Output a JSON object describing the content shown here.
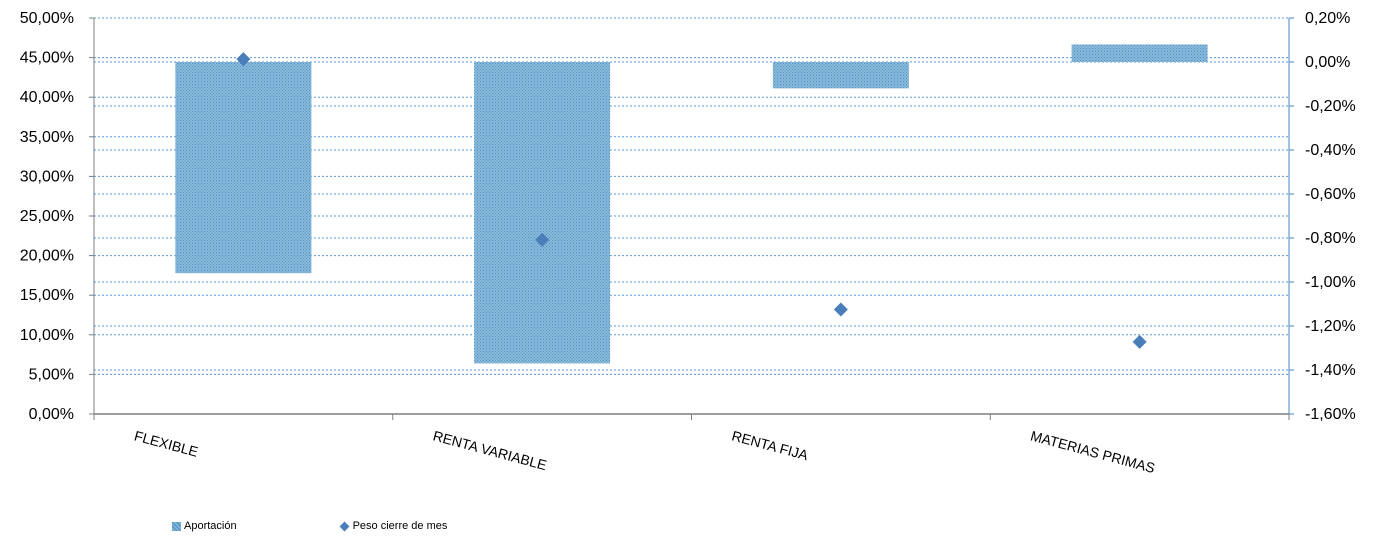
{
  "chart_data": {
    "type": "bar",
    "categories": [
      "FLEXIBLE",
      "RENTA VARIABLE",
      "RENTA FIJA",
      "MATERIAS PRIMAS"
    ],
    "series": [
      {
        "name": "Aportación",
        "chart": "bar",
        "axis": "right",
        "values": [
          -0.96,
          -1.37,
          -0.12,
          0.08
        ]
      },
      {
        "name": "Peso cierre de mes",
        "chart": "scatter",
        "axis": "left",
        "values": [
          44.8,
          22.0,
          13.2,
          9.1
        ]
      }
    ],
    "y_left": {
      "min": 0,
      "max": 50,
      "step": 5,
      "tick_labels": [
        "0,00%",
        "5,00%",
        "10,00%",
        "15,00%",
        "20,00%",
        "25,00%",
        "30,00%",
        "35,00%",
        "40,00%",
        "45,00%",
        "50,00%"
      ]
    },
    "y_right": {
      "min": -1.6,
      "max": 0.2,
      "step": 0.2,
      "tick_labels": [
        "-1,60%",
        "-1,40%",
        "-1,20%",
        "-1,00%",
        "-0,80%",
        "-0,60%",
        "-0,40%",
        "-0,20%",
        "0,00%",
        "0,20%"
      ]
    },
    "title": "",
    "grid": true,
    "legend_position": "bottom-left",
    "colors": {
      "bar_fill": "#7fb3d5",
      "bar_pattern": "#4a8fc1",
      "marker": "#4a7ebb",
      "grid": "#5b9bd5",
      "right_axis": "#4a86c8"
    }
  },
  "legend": {
    "items": [
      {
        "label": "Aportación",
        "icon": "hatched-square-icon"
      },
      {
        "label": "Peso cierre de mes",
        "icon": "diamond-icon"
      }
    ]
  }
}
